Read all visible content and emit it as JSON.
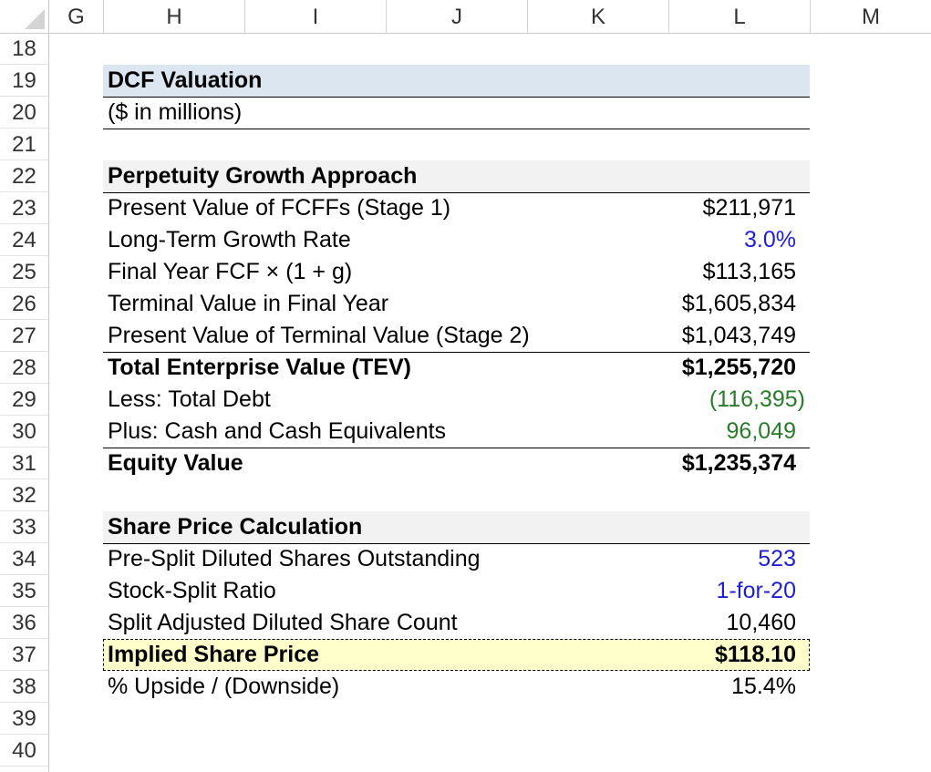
{
  "columns": [
    "G",
    "H",
    "I",
    "J",
    "K",
    "L",
    "M"
  ],
  "rows": [
    "18",
    "19",
    "20",
    "21",
    "22",
    "23",
    "24",
    "25",
    "26",
    "27",
    "28",
    "29",
    "30",
    "31",
    "32",
    "33",
    "34",
    "35",
    "36",
    "37",
    "38",
    "39",
    "40"
  ],
  "title": "DCF Valuation",
  "subtitle": "($ in millions)",
  "perpetuity": {
    "header": "Perpetuity Growth Approach",
    "items": [
      {
        "label": "Present Value of FCFFs (Stage 1)",
        "value": "$211,971"
      },
      {
        "label": "Long-Term Growth Rate",
        "value": "3.0%"
      },
      {
        "label": "Final Year FCF × (1 + g)",
        "value": "$113,165"
      },
      {
        "label": "Terminal Value in Final Year",
        "value": "$1,605,834"
      },
      {
        "label": "Present Value of Terminal Value (Stage 2)",
        "value": "$1,043,749"
      },
      {
        "label": "Total Enterprise Value (TEV)",
        "value": "$1,255,720"
      },
      {
        "label": "Less: Total Debt",
        "value": "(116,395)"
      },
      {
        "label": "Plus: Cash and Cash Equivalents",
        "value": "96,049"
      },
      {
        "label": "Equity Value",
        "value": "$1,235,374"
      }
    ]
  },
  "share_price": {
    "header": "Share Price Calculation",
    "items": [
      {
        "label": "Pre-Split Diluted Shares Outstanding",
        "value": "523"
      },
      {
        "label": "Stock-Split Ratio",
        "value": "1-for-20"
      },
      {
        "label": "Split Adjusted Diluted Share Count",
        "value": "10,460"
      },
      {
        "label": "Implied Share Price",
        "value": "$118.10"
      },
      {
        "label": "% Upside / (Downside)",
        "value": "15.4%"
      }
    ]
  },
  "colors": {
    "title_fill": "#dce6f1",
    "section_fill": "#f2f2f2",
    "highlight_fill": "#ffffcc",
    "input_blue": "#1f1fd1",
    "link_green": "#2b7a2b"
  }
}
